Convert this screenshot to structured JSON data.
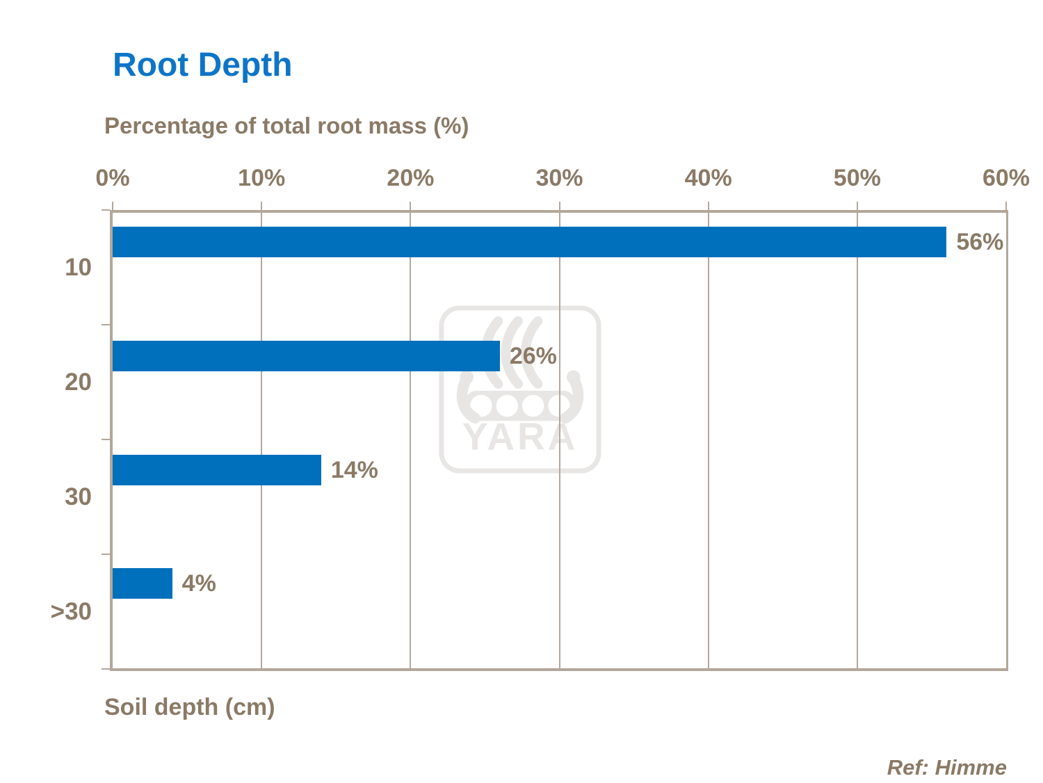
{
  "title": {
    "text": "Root Depth"
  },
  "chart_data": {
    "type": "bar",
    "orientation": "horizontal",
    "title": "Root Depth",
    "xlabel": "Percentage of total root mass (%)",
    "ylabel": "Soil depth (cm)",
    "categories": [
      "10",
      "20",
      "30",
      ">30"
    ],
    "values": [
      56,
      26,
      14,
      4
    ],
    "data_labels": [
      "56%",
      "26%",
      "14%",
      "4%"
    ],
    "x_ticks": [
      "0%",
      "10%",
      "20%",
      "30%",
      "40%",
      "50%",
      "60%"
    ],
    "xlim": [
      0,
      60
    ],
    "grid": true,
    "legend": false,
    "bar_color": "#0070bc",
    "title_color": "#0d75c8",
    "label_color": "#8a7a66",
    "axis_color": "#b2a79a"
  },
  "watermark": {
    "text": "YARA",
    "color": "#e8e6e4"
  },
  "footer": {
    "reference": "Ref: Himme"
  }
}
